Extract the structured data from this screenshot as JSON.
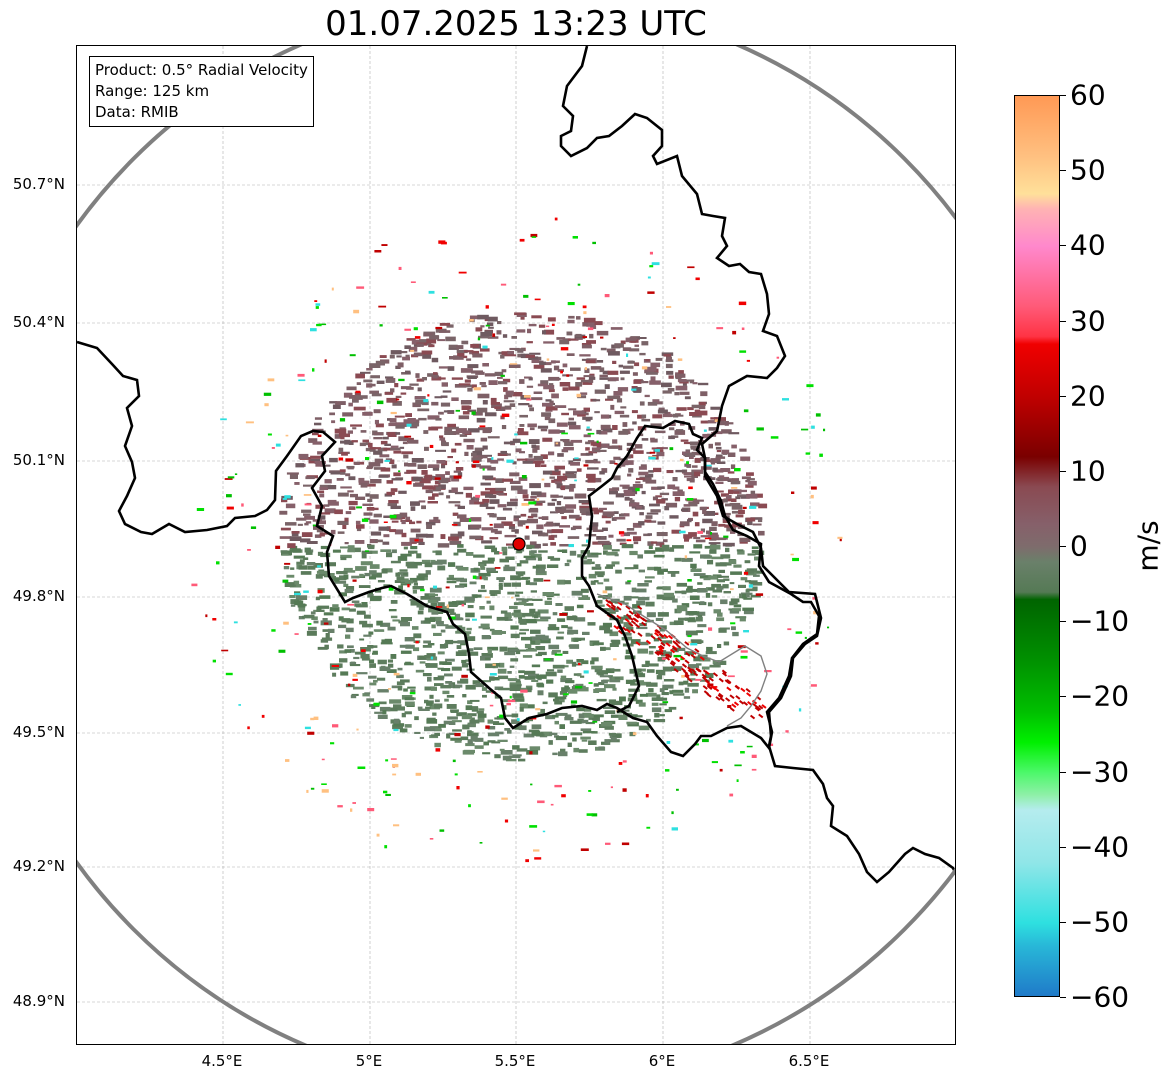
{
  "title": "01.07.2025 13:23 UTC",
  "info_box": {
    "product": "Product: 0.5° Radial Velocity",
    "range": "Range: 125 km",
    "data": "Data: RMIB"
  },
  "map": {
    "radar_site": {
      "lon": 5.505,
      "lat": 49.915
    },
    "lon_range": [
      4.0,
      7.0
    ],
    "lat_range": [
      48.8,
      51.0
    ],
    "lat_ticks": [
      "50.7°N",
      "50.4°N",
      "50.1°N",
      "49.8°N",
      "49.5°N",
      "49.2°N",
      "48.9°N"
    ],
    "lon_ticks": [
      "4.5°E",
      "5°E",
      "5.5°E",
      "6°E",
      "6.5°E"
    ],
    "gridlines": true,
    "range_ring_color": "#808080",
    "border_color": "#000000"
  },
  "colorbar": {
    "unit": "m/s",
    "min": -60,
    "max": 60,
    "tick_labels": [
      "60",
      "50",
      "40",
      "30",
      "20",
      "10",
      "0",
      "−10",
      "−20",
      "−30",
      "−40",
      "−50",
      "−60"
    ],
    "colors": {
      "approach_far": "#1f78c8",
      "cyan": "#2ee0e0",
      "light_cyan": "#b5ecee",
      "light_green": "#8ff0a8",
      "green": "#00e000",
      "dark_green": "#006400",
      "olive_gray": "#5e7d5e",
      "mauve": "#7e5f66",
      "dark_red": "#7a0000",
      "red": "#f00000",
      "pink": "#ff5a78",
      "light_pink": "#ff99cc",
      "peach": "#ffe09a",
      "orange": "#ff9955"
    }
  }
}
